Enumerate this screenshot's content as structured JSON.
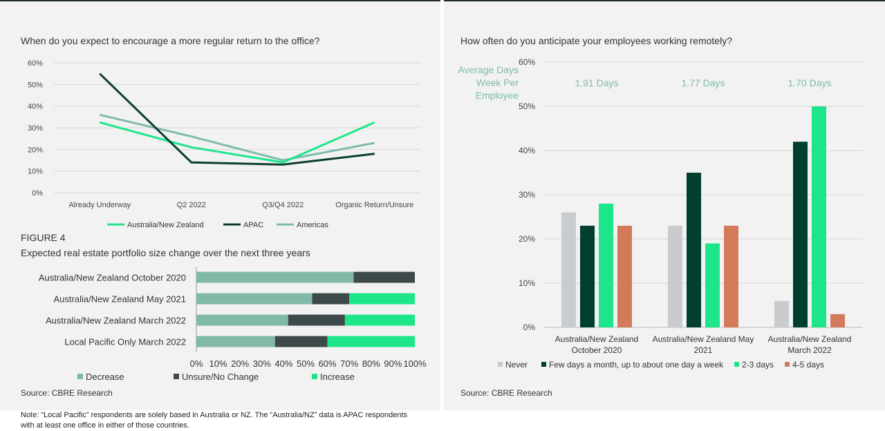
{
  "left": {
    "line_title": "When do you expect to encourage a more regular return to the office?",
    "figure_label": "FIGURE 4",
    "bar_title": "Expected real estate portfolio size change over the next three years",
    "source": "Source: CBRE Research"
  },
  "right": {
    "title": "How often do you anticipate your employees working remotely?",
    "side_label_lines": [
      "Average Days",
      "Week Per",
      "Employee"
    ],
    "source": "Source: CBRE Research"
  },
  "note": "Note: “Local Pacific” respondents are solely based in Australia or NZ. The “Australia/NZ” data is APAC respondents with at least one office in either of those countries.",
  "colors": {
    "anz": "#1de68a",
    "apac": "#0b3d2e",
    "americas": "#7fbba9",
    "decrease": "#80b9a8",
    "unsure": "#3e4a4a",
    "increase": "#1de68a",
    "never": "#c8ccce",
    "few": "#003e2f",
    "d23": "#1de68a",
    "d45": "#d27a5a"
  },
  "chart_data": [
    {
      "type": "line",
      "title": "When do you expect to encourage a more regular return to the office?",
      "categories": [
        "Already Underway",
        "Q2 2022",
        "Q3/Q4 2022",
        "Organic Return/Unsure"
      ],
      "series": [
        {
          "name": "Australia/New Zealand",
          "values": [
            32.5,
            21,
            14,
            32.5
          ]
        },
        {
          "name": "APAC",
          "values": [
            55,
            14,
            13,
            18
          ]
        },
        {
          "name": "Americas",
          "values": [
            36,
            26,
            15,
            23
          ]
        }
      ],
      "ylim": [
        0,
        60
      ],
      "yticks": [
        0,
        10,
        20,
        30,
        40,
        50,
        60
      ],
      "ytick_labels": [
        "0%",
        "10%",
        "20%",
        "30%",
        "40%",
        "50%",
        "60%"
      ],
      "legend": "bottom"
    },
    {
      "type": "bar",
      "orientation": "horizontal",
      "stacked": true,
      "title": "Expected real estate portfolio size change over the next three years",
      "categories": [
        "Australia/New Zealand October 2020",
        "Australia/New Zealand May 2021",
        "Australia/New Zealand March 2022",
        "Local Pacific Only March 2022"
      ],
      "series": [
        {
          "name": "Decrease",
          "values": [
            72,
            53,
            42,
            36
          ]
        },
        {
          "name": "Unsure/No Change",
          "values": [
            28,
            17,
            26,
            24
          ]
        },
        {
          "name": "Increase",
          "values": [
            0,
            30,
            32,
            40
          ]
        }
      ],
      "xlim": [
        0,
        100
      ],
      "xticks": [
        0,
        10,
        20,
        30,
        40,
        50,
        60,
        70,
        80,
        90,
        100
      ],
      "xtick_labels": [
        "0%",
        "10%",
        "20%",
        "30%",
        "40%",
        "50%",
        "60%",
        "70%",
        "80%",
        "90%",
        "100%"
      ],
      "legend": "bottom"
    },
    {
      "type": "bar",
      "title": "How often do you anticipate your employees working remotely?",
      "categories": [
        [
          "Australia/New Zealand",
          "October 2020"
        ],
        [
          "Australia/New Zealand May",
          "2021"
        ],
        [
          "Australia/New Zealand",
          "March 2022"
        ]
      ],
      "series": [
        {
          "name": "Never",
          "values": [
            26,
            23,
            6
          ]
        },
        {
          "name": "Few days a month, up to about one day a week",
          "values": [
            23,
            35,
            42
          ]
        },
        {
          "name": "2-3 days",
          "values": [
            28,
            19,
            50
          ]
        },
        {
          "name": "4-5 days",
          "values": [
            23,
            23,
            3
          ]
        }
      ],
      "annotations": [
        "1.91 Days",
        "1.77 Days",
        "1.70 Days"
      ],
      "ylim": [
        0,
        60
      ],
      "yticks": [
        0,
        10,
        20,
        30,
        40,
        50,
        60
      ],
      "ytick_labels": [
        "0%",
        "10%",
        "20%",
        "30%",
        "40%",
        "50%",
        "60%"
      ],
      "legend": "bottom"
    }
  ]
}
